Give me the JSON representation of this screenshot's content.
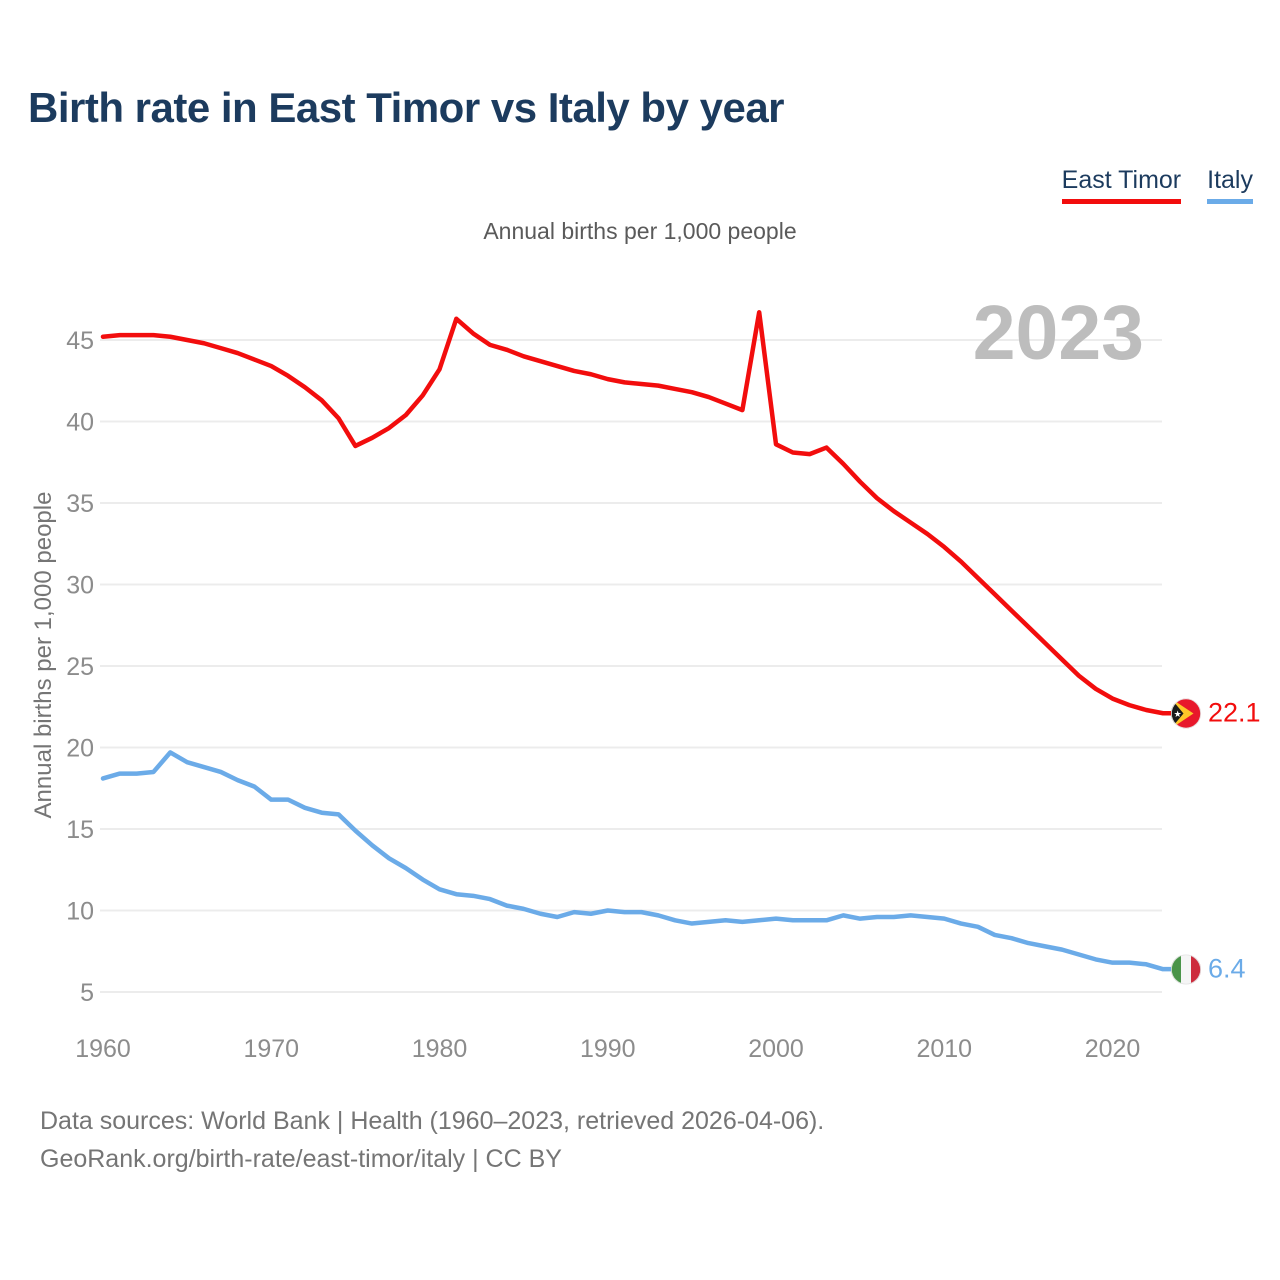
{
  "header": {
    "title": "Birth rate in East Timor vs Italy by year",
    "subtitle": "Annual births per 1,000 people"
  },
  "legend": {
    "items": [
      {
        "label": "East Timor",
        "color": "#f20d0d"
      },
      {
        "label": "Italy",
        "color": "#6babe8"
      }
    ]
  },
  "chart_data": {
    "type": "line",
    "title": "Birth rate in East Timor vs Italy by year",
    "ylabel": "Annual births per 1,000 people",
    "watermark": "2023",
    "grid": "horizontal",
    "xlim": [
      1960,
      2023
    ],
    "ylim": [
      3,
      48
    ],
    "x_ticks": [
      1960,
      1970,
      1980,
      1990,
      2000,
      2010,
      2020
    ],
    "y_ticks": [
      5,
      10,
      15,
      20,
      25,
      30,
      35,
      40,
      45
    ],
    "years": [
      1960,
      1961,
      1962,
      1963,
      1964,
      1965,
      1966,
      1967,
      1968,
      1969,
      1970,
      1971,
      1972,
      1973,
      1974,
      1975,
      1976,
      1977,
      1978,
      1979,
      1980,
      1981,
      1982,
      1983,
      1984,
      1985,
      1986,
      1987,
      1988,
      1989,
      1990,
      1991,
      1992,
      1993,
      1994,
      1995,
      1996,
      1997,
      1998,
      1999,
      2000,
      2001,
      2002,
      2003,
      2004,
      2005,
      2006,
      2007,
      2008,
      2009,
      2010,
      2011,
      2012,
      2013,
      2014,
      2015,
      2016,
      2017,
      2018,
      2019,
      2020,
      2021,
      2022,
      2023
    ],
    "series": [
      {
        "id": "east-timor",
        "name": "East Timor",
        "color": "#f20d0d",
        "end_label": "22.1",
        "flag": "east-timor-flag",
        "values": [
          45.2,
          45.3,
          45.3,
          45.3,
          45.2,
          45.0,
          44.8,
          44.5,
          44.2,
          43.8,
          43.4,
          42.8,
          42.1,
          41.3,
          40.2,
          38.5,
          39.0,
          39.6,
          40.4,
          41.6,
          43.2,
          46.3,
          45.4,
          44.7,
          44.4,
          44.0,
          43.7,
          43.4,
          43.1,
          42.9,
          42.6,
          42.4,
          42.3,
          42.2,
          42.0,
          41.8,
          41.5,
          41.1,
          40.7,
          46.7,
          38.6,
          38.1,
          38.0,
          38.4,
          37.4,
          36.3,
          35.3,
          34.5,
          33.8,
          33.1,
          32.3,
          31.4,
          30.4,
          29.4,
          28.4,
          27.4,
          26.4,
          25.4,
          24.4,
          23.6,
          23.0,
          22.6,
          22.3,
          22.1
        ]
      },
      {
        "id": "italy",
        "name": "Italy",
        "color": "#6babe8",
        "end_label": "6.4",
        "flag": "italy-flag",
        "values": [
          18.1,
          18.4,
          18.4,
          18.5,
          19.7,
          19.1,
          18.8,
          18.5,
          18.0,
          17.6,
          16.8,
          16.8,
          16.3,
          16.0,
          15.9,
          14.9,
          14.0,
          13.2,
          12.6,
          11.9,
          11.3,
          11.0,
          10.9,
          10.7,
          10.3,
          10.1,
          9.8,
          9.6,
          9.9,
          9.8,
          10.0,
          9.9,
          9.9,
          9.7,
          9.4,
          9.2,
          9.3,
          9.4,
          9.3,
          9.4,
          9.5,
          9.4,
          9.4,
          9.4,
          9.7,
          9.5,
          9.6,
          9.6,
          9.7,
          9.6,
          9.5,
          9.2,
          9.0,
          8.5,
          8.3,
          8.0,
          7.8,
          7.6,
          7.3,
          7.0,
          6.8,
          6.8,
          6.7,
          6.4
        ]
      }
    ]
  },
  "footer": {
    "line1": "Data sources: World Bank | Health (1960–2023, retrieved 2026-04-06).",
    "line2": "GeoRank.org/birth-rate/east-timor/italy | CC BY"
  }
}
